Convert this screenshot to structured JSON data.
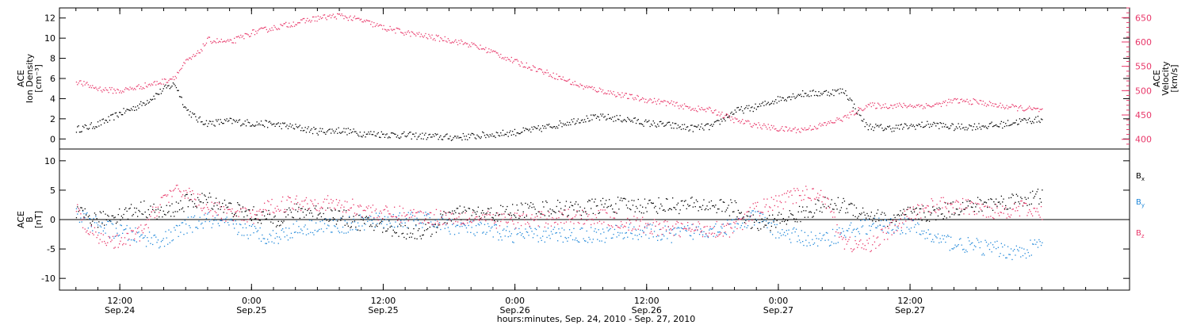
{
  "colors": {
    "black": "#000000",
    "pink": "#e8386a",
    "blue": "#1f87d9"
  },
  "chart_data": [
    {
      "type": "scatter",
      "panel": "top",
      "title": "",
      "ylabel": [
        "ACE",
        "Ion Density",
        "[cm⁻³]"
      ],
      "y2label": [
        "ACE",
        "Velocity",
        "[km/s]"
      ],
      "ylim": [
        -1,
        13
      ],
      "y2lim": [
        380,
        670
      ],
      "yticks": [
        0,
        2,
        4,
        6,
        8,
        10,
        12
      ],
      "y2ticks": [
        400,
        450,
        500,
        550,
        600,
        650
      ],
      "series": [
        {
          "axis": "left",
          "color": "#000000",
          "x": [
            8,
            9,
            10,
            11,
            12,
            13,
            14,
            15,
            16,
            17,
            18,
            19,
            20,
            22,
            24,
            26,
            28,
            30,
            32,
            34,
            36,
            38,
            40,
            42,
            44,
            46,
            48,
            50,
            52,
            54,
            56,
            58,
            60,
            62,
            64,
            66,
            68,
            70,
            72,
            74,
            76,
            78,
            80,
            82,
            84,
            86,
            88,
            90,
            92,
            94,
            96
          ],
          "y": [
            1.0,
            1.2,
            1.5,
            2.0,
            2.6,
            3.0,
            3.5,
            4.2,
            5.0,
            5.5,
            3.0,
            2.0,
            1.6,
            1.8,
            1.6,
            1.5,
            1.2,
            0.8,
            0.9,
            0.6,
            0.5,
            0.4,
            0.3,
            0.2,
            0.3,
            0.5,
            0.7,
            1.0,
            1.5,
            2.0,
            2.2,
            2.0,
            1.6,
            1.4,
            1.1,
            1.3,
            2.8,
            3.2,
            4.0,
            4.5,
            4.6,
            4.8,
            1.3,
            1.1,
            1.3,
            1.5,
            1.2,
            1.3,
            1.4,
            1.8,
            2.0
          ]
        },
        {
          "axis": "right",
          "color": "#e8386a",
          "x": [
            8,
            9,
            10,
            11,
            12,
            13,
            14,
            15,
            16,
            17,
            18,
            19,
            20,
            22,
            24,
            26,
            28,
            30,
            32,
            34,
            36,
            38,
            40,
            42,
            44,
            46,
            48,
            50,
            52,
            54,
            56,
            58,
            60,
            62,
            64,
            66,
            68,
            70,
            72,
            74,
            76,
            78,
            80,
            82,
            84,
            86,
            88,
            90,
            92,
            94,
            96
          ],
          "y": [
            520,
            512,
            505,
            502,
            500,
            505,
            510,
            515,
            520,
            530,
            560,
            575,
            605,
            600,
            620,
            630,
            640,
            650,
            655,
            645,
            630,
            620,
            612,
            605,
            595,
            580,
            560,
            545,
            528,
            510,
            500,
            490,
            482,
            475,
            465,
            460,
            440,
            430,
            422,
            420,
            430,
            445,
            470,
            470,
            470,
            470,
            480,
            478,
            470,
            465,
            460
          ]
        }
      ]
    },
    {
      "type": "scatter",
      "panel": "bottom",
      "title": "",
      "ylabel": [
        "ACE",
        "B",
        "[nT]"
      ],
      "ylim": [
        -12,
        12
      ],
      "yticks": [
        -10,
        -5,
        0,
        5,
        10
      ],
      "series": [
        {
          "name": "Bx",
          "color": "#000000",
          "x": [
            8,
            9,
            10,
            12,
            14,
            16,
            18,
            20,
            22,
            24,
            26,
            28,
            30,
            32,
            34,
            36,
            38,
            40,
            42,
            44,
            46,
            48,
            50,
            52,
            54,
            56,
            58,
            60,
            62,
            64,
            66,
            68,
            70,
            72,
            74,
            76,
            78,
            80,
            82,
            84,
            86,
            88,
            90,
            92,
            94,
            96
          ],
          "y": [
            1.0,
            0.5,
            0.0,
            1.0,
            2.0,
            1.0,
            3.0,
            3.5,
            2.0,
            1.0,
            0.0,
            1.5,
            1.5,
            0.5,
            -0.5,
            -1.0,
            -2.0,
            -2.0,
            1.0,
            1.0,
            1.0,
            1.5,
            2.0,
            2.0,
            2.0,
            2.5,
            2.5,
            2.5,
            2.5,
            2.5,
            2.5,
            2.0,
            -1.0,
            0.0,
            1.0,
            2.5,
            2.5,
            1.0,
            0.0,
            1.0,
            1.0,
            2.0,
            2.5,
            3.0,
            3.5,
            4.0
          ]
        },
        {
          "name": "By",
          "color": "#1f87d9",
          "x": [
            8,
            9,
            10,
            12,
            14,
            16,
            18,
            20,
            22,
            24,
            26,
            28,
            30,
            32,
            34,
            36,
            38,
            40,
            42,
            44,
            46,
            48,
            50,
            52,
            54,
            56,
            58,
            60,
            62,
            64,
            66,
            68,
            70,
            72,
            74,
            76,
            78,
            80,
            82,
            84,
            86,
            88,
            90,
            92,
            94,
            96
          ],
          "y": [
            1.0,
            0.0,
            -1.0,
            -2.0,
            -3.0,
            -3.5,
            -1.0,
            0.0,
            -1.0,
            -2.0,
            -3.0,
            -1.5,
            -1.0,
            -1.0,
            -0.5,
            0.0,
            0.0,
            0.0,
            -1.0,
            -1.5,
            -2.0,
            -2.5,
            -2.5,
            -2.5,
            -2.5,
            -2.5,
            -2.0,
            -2.0,
            -2.5,
            -2.0,
            -1.5,
            -1.0,
            0.5,
            -2.0,
            -3.0,
            -3.5,
            -2.0,
            -1.0,
            -1.0,
            -1.0,
            -3.0,
            -4.0,
            -4.5,
            -5.0,
            -5.5,
            -4.0
          ]
        },
        {
          "name": "Bz",
          "color": "#e8386a",
          "x": [
            8,
            9,
            10,
            12,
            14,
            16,
            18,
            20,
            22,
            24,
            26,
            28,
            30,
            32,
            34,
            36,
            38,
            40,
            42,
            44,
            46,
            48,
            50,
            52,
            54,
            56,
            58,
            60,
            62,
            64,
            66,
            68,
            70,
            72,
            74,
            76,
            78,
            80,
            82,
            84,
            86,
            88,
            90,
            92,
            94,
            96
          ],
          "y": [
            2.0,
            -2.0,
            -3.0,
            -4.0,
            -2.0,
            4.0,
            5.0,
            2.0,
            1.0,
            0.5,
            2.5,
            3.0,
            3.0,
            2.5,
            2.0,
            1.0,
            1.0,
            0.5,
            0.5,
            0.5,
            0.0,
            0.0,
            0.0,
            0.5,
            0.5,
            0.5,
            -0.5,
            -1.0,
            -1.5,
            -1.5,
            -1.5,
            -1.5,
            2.0,
            3.0,
            4.5,
            4.5,
            -4.0,
            -4.5,
            -2.0,
            1.0,
            2.5,
            2.5,
            2.0,
            1.5,
            2.0,
            1.0
          ]
        }
      ]
    }
  ],
  "xaxis": {
    "range_hours": [
      6.5,
      104
    ],
    "ticks": [
      {
        "x": 12,
        "time": "12:00",
        "date": "Sep.24"
      },
      {
        "x": 24,
        "time": "0:00",
        "date": "Sep.25"
      },
      {
        "x": 36,
        "time": "12:00",
        "date": "Sep.25"
      },
      {
        "x": 48,
        "time": "0:00",
        "date": "Sep.26"
      },
      {
        "x": 60,
        "time": "12:00",
        "date": "Sep.26"
      },
      {
        "x": 72,
        "time": "0:00",
        "date": "Sep.27"
      },
      {
        "x": 84,
        "time": "12:00",
        "date": "Sep.27"
      }
    ],
    "label": "hours:minutes, Sep. 24, 2010 - Sep. 27, 2010"
  },
  "legend": [
    {
      "text": "Bx",
      "color": "#000000"
    },
    {
      "text": "By",
      "color": "#1f87d9"
    },
    {
      "text": "Bz",
      "color": "#e8386a"
    }
  ]
}
